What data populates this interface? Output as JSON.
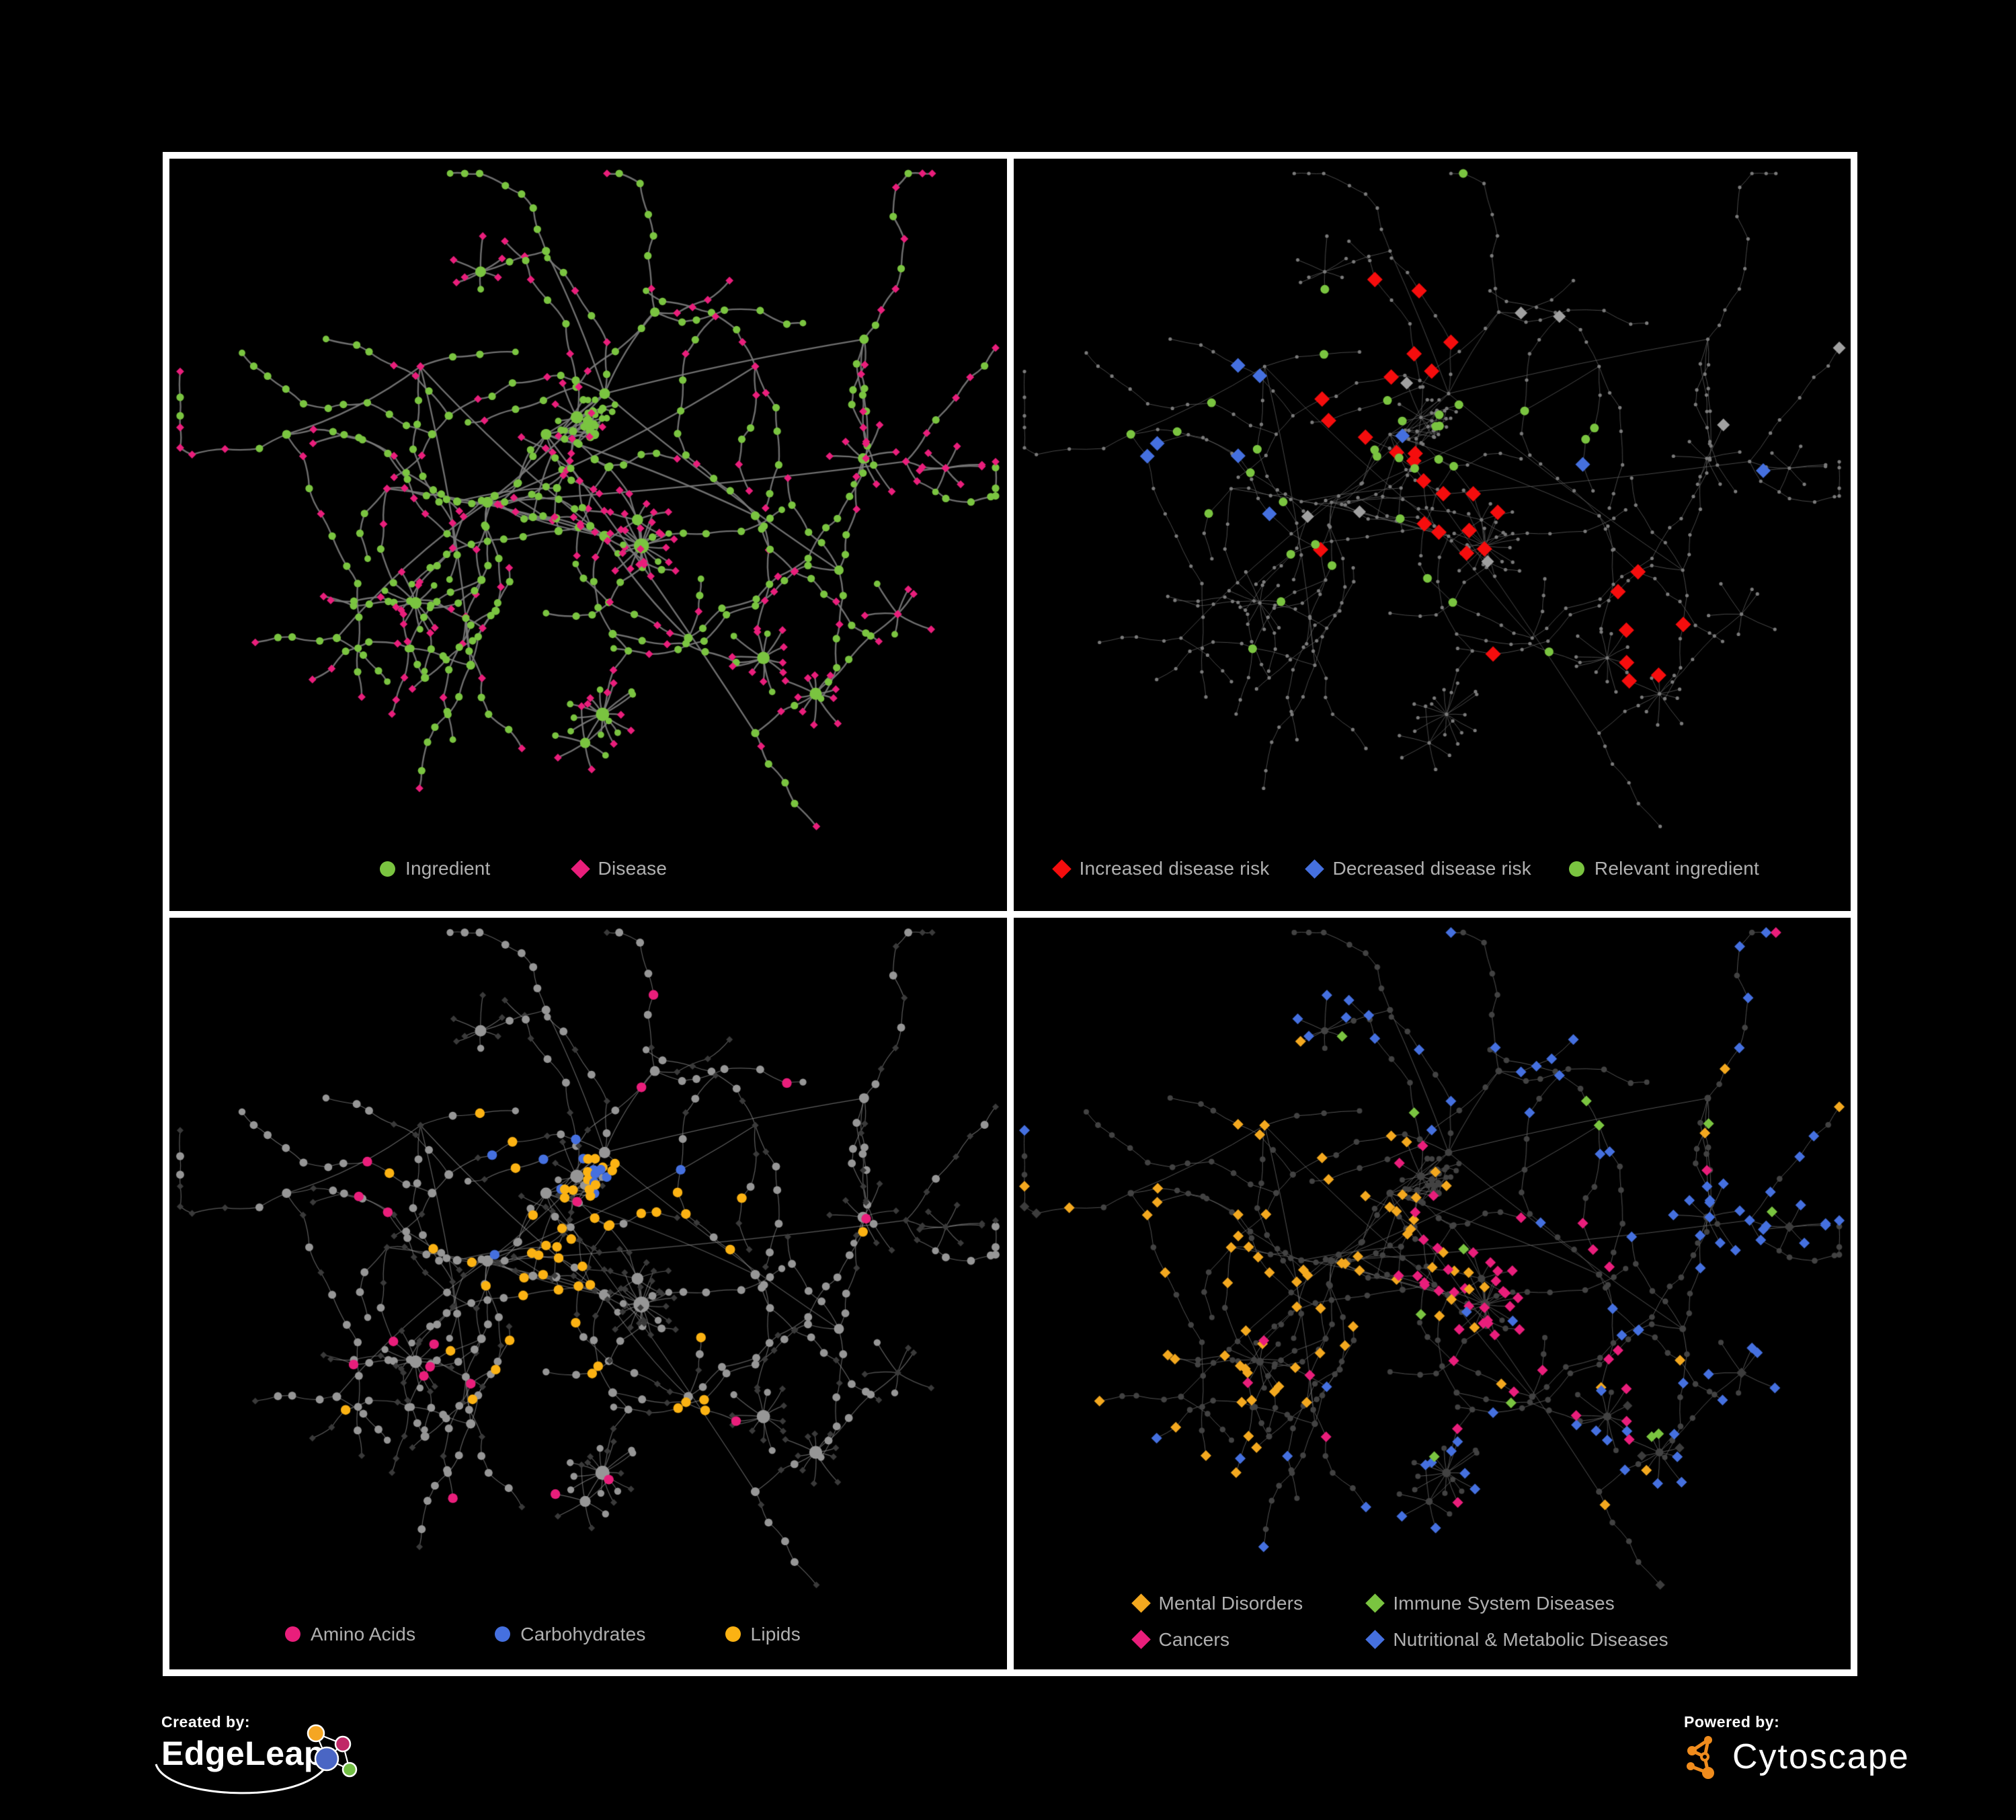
{
  "page": {
    "background": "#000000",
    "frame_color": "#ffffff"
  },
  "legend_text_color": "#B0B0B0",
  "network": {
    "seed": 20,
    "grow": 500,
    "bursts": 9,
    "cross": 26,
    "node_total_approx": 640
  },
  "panels": [
    {
      "name": "ingredient-disease-network",
      "legend": {
        "items": [
          {
            "shape": "circle",
            "color": "#7AC440",
            "label": "Ingredient"
          },
          {
            "shape": "diamond",
            "color": "#E91E7B",
            "label": "Disease"
          }
        ]
      },
      "view": {
        "mode": "shapes",
        "edge": {
          "color": "#7B7B7B",
          "width": 2.4,
          "alpha": 0.9,
          "curve": 0.09
        },
        "circle": {
          "color": "#7AC440",
          "base": 3.2,
          "k": 1.7,
          "max": 14
        },
        "diamond": {
          "color": "#E91E7B",
          "half": 5.6,
          "k": 0.25,
          "max": 8
        },
        "highlights": []
      }
    },
    {
      "name": "disease-risk-network",
      "legend": {
        "items": [
          {
            "shape": "diamond",
            "color": "#F50D0D",
            "label": "Increased disease risk"
          },
          {
            "shape": "diamond",
            "color": "#4570DF",
            "label": "Decreased disease risk"
          },
          {
            "shape": "circle",
            "color": "#7AC440",
            "label": "Relevant ingredient"
          }
        ]
      },
      "view": {
        "mode": "dots",
        "edge": {
          "color": "#646464",
          "width": 0.9,
          "alpha": 0.8,
          "curve": 0.045
        },
        "dot": {
          "color": "#7A7A7A",
          "r": 2.6
        },
        "highlights": [
          {
            "kind": "d",
            "shape": "diamond",
            "color": "#F50D0D",
            "count": 30,
            "half": 11.5,
            "seed": 101,
            "bias": [
              [
                0.52,
                0.4,
                0.13,
                1
              ],
              [
                0.33,
                0.33,
                0.07,
                0.5
              ],
              [
                0.74,
                0.72,
                0.1,
                0.3
              ]
            ]
          },
          {
            "kind": "d",
            "shape": "diamond",
            "color": "#4570DF",
            "count": 9,
            "half": 11,
            "seed": 102,
            "bias": [
              [
                0.27,
                0.38,
                0.07,
                1
              ],
              [
                0.9,
                0.26,
                0.04,
                0.5
              ]
            ]
          },
          {
            "kind": "d",
            "shape": "diamond",
            "color": "#A0A0A0",
            "count": 8,
            "half": 9.5,
            "seed": 103,
            "bias": [
              [
                0.44,
                0.42,
                0.2,
                1
              ],
              [
                0.64,
                0.58,
                0.14,
                0.5
              ]
            ]
          },
          {
            "kind": "c",
            "shape": "circle",
            "color": "#7AC440",
            "count": 34,
            "r": 6.5,
            "seed": 104,
            "bias": [
              [
                0.44,
                0.4,
                0.16,
                1
              ],
              [
                0.26,
                0.38,
                0.08,
                0.6
              ]
            ]
          }
        ]
      }
    },
    {
      "name": "ingredient-category-network",
      "legend": {
        "items": [
          {
            "shape": "circle",
            "color": "#E91E7B",
            "label": "Amino Acids"
          },
          {
            "shape": "circle",
            "color": "#4570DF",
            "label": "Carbohydrates"
          },
          {
            "shape": "circle",
            "color": "#FBB213",
            "label": "Lipids"
          }
        ]
      },
      "view": {
        "mode": "shapes",
        "edge": {
          "color": "#9A9A9A",
          "width": 1.2,
          "alpha": 0.6,
          "curve": 0.09
        },
        "circle": {
          "color": "#969696",
          "base": 3.4,
          "k": 1.8,
          "max": 13
        },
        "diamond": {
          "color": "#3A3A3A",
          "half": 4.8,
          "k": 0.2,
          "max": 7
        },
        "highlights": [
          {
            "kind": "c",
            "shape": "circle",
            "color": "#FBB213",
            "count": 58,
            "r": 7.2,
            "seed": 201,
            "bias": [
              [
                0.5,
                0.38,
                0.1,
                1
              ],
              [
                0.45,
                0.52,
                0.12,
                0.6
              ],
              [
                0.62,
                0.6,
                0.15,
                0.4
              ]
            ]
          },
          {
            "kind": "c",
            "shape": "circle",
            "color": "#4570DF",
            "count": 13,
            "r": 7.2,
            "seed": 202,
            "bias": [
              [
                0.5,
                0.37,
                0.08,
                1
              ],
              [
                0.15,
                0.28,
                0.12,
                0.15
              ]
            ]
          },
          {
            "kind": "c",
            "shape": "circle",
            "color": "#E91E7B",
            "count": 18,
            "r": 7.2,
            "seed": 203,
            "bias": [
              [
                0.35,
                0.55,
                0.35,
                1
              ],
              [
                0.75,
                0.45,
                0.25,
                0.5
              ]
            ]
          }
        ]
      }
    },
    {
      "name": "disease-category-network",
      "legend": {
        "items": [
          {
            "shape": "diamond",
            "color": "#F3A81F",
            "label": "Mental Disorders"
          },
          {
            "shape": "diamond",
            "color": "#7AC440",
            "label": "Immune System Diseases"
          },
          {
            "shape": "diamond",
            "color": "#E91E7B",
            "label": "Cancers"
          },
          {
            "shape": "diamond",
            "color": "#4570DF",
            "label": "Nutritional & Metabolic Diseases"
          }
        ]
      },
      "view": {
        "mode": "shapes",
        "edge": {
          "color": "#6F6F6F",
          "width": 1.0,
          "alpha": 0.75,
          "curve": 0.045
        },
        "circle": {
          "color": "#424242",
          "base": 3.2,
          "k": 0.8,
          "max": 7
        },
        "diamond": {
          "color": "#3C3C3C",
          "half": 6.8,
          "k": 0.35,
          "max": 10
        },
        "highlights": [
          {
            "kind": "d",
            "shape": "diamond",
            "color": "#F3A81F",
            "count": 82,
            "half": 8,
            "seed": 301,
            "bias": [
              [
                0.24,
                0.48,
                0.1,
                1
              ],
              [
                0.3,
                0.42,
                0.09,
                0.5
              ]
            ]
          },
          {
            "kind": "d",
            "shape": "diamond",
            "color": "#7AC440",
            "count": 12,
            "half": 8,
            "seed": 302,
            "bias": [
              [
                0.5,
                0.45,
                0.3,
                1
              ]
            ]
          },
          {
            "kind": "d",
            "shape": "diamond",
            "color": "#E91E7B",
            "count": 52,
            "half": 8,
            "seed": 303,
            "bias": [
              [
                0.47,
                0.5,
                0.12,
                1
              ],
              [
                0.56,
                0.62,
                0.1,
                0.4
              ],
              [
                0.88,
                0.28,
                0.06,
                0.3
              ]
            ]
          },
          {
            "kind": "d",
            "shape": "diamond",
            "color": "#4570DF",
            "count": 88,
            "half": 8,
            "seed": 304,
            "bias": [
              [
                0.57,
                0.56,
                0.06,
                1
              ],
              [
                0.75,
                0.35,
                0.2,
                0.5
              ],
              [
                0.86,
                0.24,
                0.1,
                0.5
              ],
              [
                0.3,
                0.72,
                0.18,
                0.3
              ],
              [
                0.45,
                0.12,
                0.25,
                0.3
              ]
            ]
          }
        ]
      }
    }
  ],
  "footer": {
    "created_by": "Created by:",
    "edgeleap": "EdgeLeap",
    "powered_by": "Powered by:",
    "cytoscape": "Cytoscape",
    "edgeleap_colors": [
      "#F5A623",
      "#C02867",
      "#4A66C4",
      "#72BE44"
    ],
    "cytoscape_color": "#F08C1D"
  }
}
